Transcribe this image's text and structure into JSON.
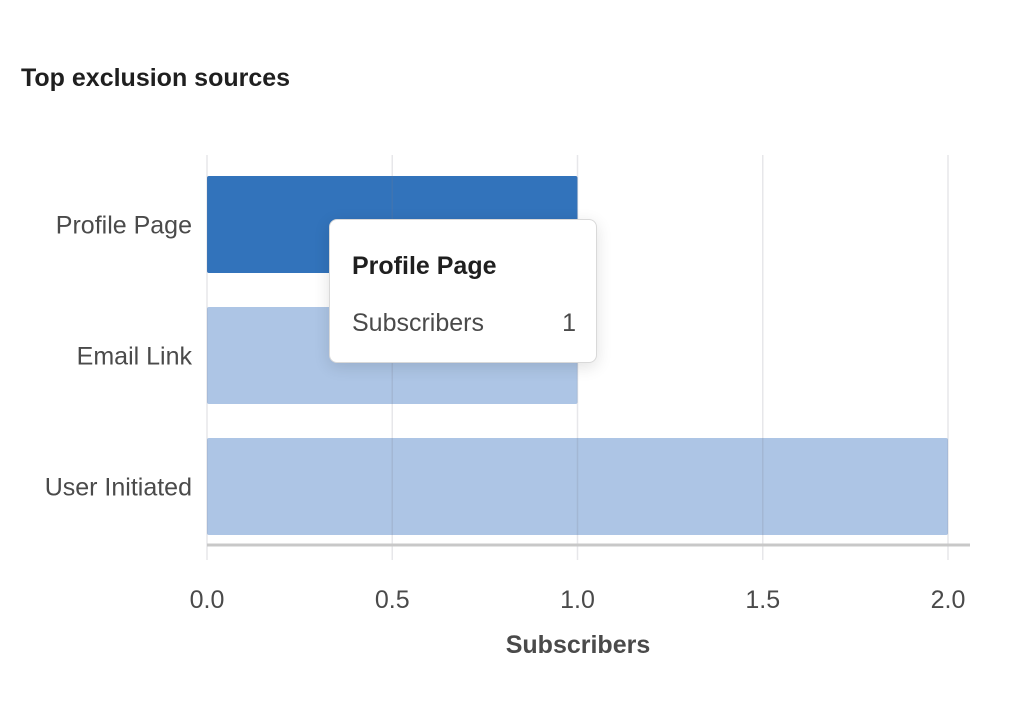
{
  "chart_data": {
    "type": "bar",
    "orientation": "horizontal",
    "title": "Top exclusion sources",
    "categories": [
      "Profile Page",
      "Email Link",
      "User Initiated"
    ],
    "values": [
      1,
      1,
      2
    ],
    "xlabel": "Subscribers",
    "ylabel": "",
    "xlim": [
      0,
      2
    ],
    "xticks": [
      "0.0",
      "0.5",
      "1.0",
      "1.5",
      "2.0"
    ],
    "grid": true,
    "highlighted_category": "Profile Page",
    "colors": {
      "highlight": "#3273bb",
      "bar": "#adc5e5",
      "grid": "#e6e6e6",
      "axis": "#c8c8c8"
    }
  },
  "tooltip": {
    "title": "Profile Page",
    "label": "Subscribers",
    "value": "1"
  }
}
